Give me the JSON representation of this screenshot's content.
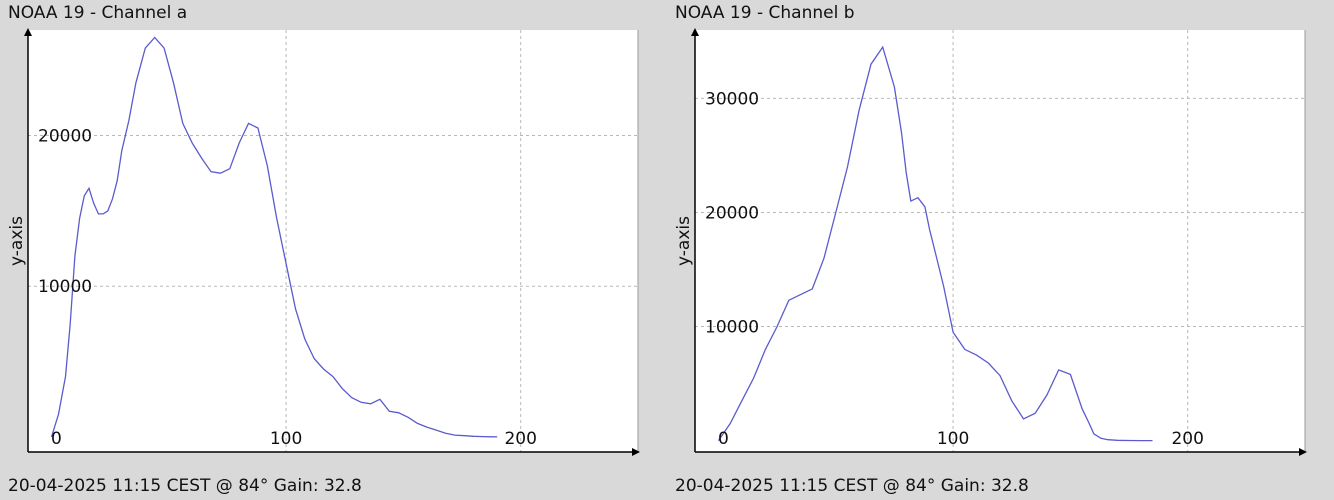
{
  "chart_data": [
    {
      "type": "line",
      "title": "NOAA 19 - Channel a",
      "footer": "20-04-2025 11:15 CEST @ 84° Gain: 32.8",
      "xlabel": "",
      "ylabel": "y-axis",
      "xlim": [
        -10,
        250
      ],
      "ylim": [
        -1000,
        27000
      ],
      "xticks": [
        0,
        100,
        200
      ],
      "xtick_labels": [
        "0",
        "100",
        "200"
      ],
      "yticks": [
        10000,
        20000
      ],
      "ytick_labels": [
        "10000",
        "20000"
      ],
      "grid": true,
      "color": "#5b5bcf",
      "series": [
        {
          "x": [
            0,
            3,
            6,
            8,
            10,
            12,
            14,
            16,
            18,
            20,
            22,
            24,
            26,
            28,
            30,
            33,
            36,
            40,
            44,
            48,
            52,
            56,
            60,
            64,
            68,
            72,
            76,
            80,
            84,
            88,
            92,
            96,
            100,
            104,
            108,
            112,
            116,
            120,
            124,
            128,
            132,
            136,
            140,
            144,
            148,
            152,
            156,
            160,
            164,
            168,
            172,
            176,
            180,
            184,
            188,
            190
          ],
          "y": [
            0,
            1500,
            4000,
            7500,
            12000,
            14500,
            16000,
            16500,
            15500,
            14800,
            14800,
            15000,
            15800,
            17000,
            19000,
            21000,
            23500,
            25800,
            26500,
            25800,
            23500,
            20800,
            19500,
            18500,
            17600,
            17500,
            17800,
            19500,
            20800,
            20500,
            18000,
            14500,
            11500,
            8500,
            6500,
            5200,
            4500,
            4000,
            3200,
            2600,
            2300,
            2200,
            2500,
            1700,
            1600,
            1300,
            900,
            650,
            450,
            250,
            120,
            80,
            40,
            20,
            10,
            0
          ]
        }
      ]
    },
    {
      "type": "line",
      "title": "NOAA 19 - Channel b",
      "footer": "20-04-2025 11:15 CEST @ 84° Gain: 32.8",
      "xlabel": "",
      "ylabel": "y-axis",
      "xlim": [
        -10,
        250
      ],
      "ylim": [
        -1000,
        36000
      ],
      "xticks": [
        0,
        100,
        200
      ],
      "xtick_labels": [
        "0",
        "100",
        "200"
      ],
      "yticks": [
        10000,
        20000,
        30000
      ],
      "ytick_labels": [
        "10000",
        "20000",
        "30000"
      ],
      "grid": true,
      "color": "#5b5bcf",
      "series": [
        {
          "x": [
            0,
            5,
            10,
            15,
            20,
            25,
            30,
            35,
            40,
            45,
            50,
            55,
            60,
            65,
            70,
            75,
            78,
            80,
            82,
            85,
            88,
            90,
            93,
            96,
            98,
            100,
            105,
            110,
            115,
            120,
            125,
            130,
            135,
            140,
            145,
            150,
            155,
            158,
            160,
            163,
            166,
            170,
            175,
            180,
            185
          ],
          "y": [
            0,
            1500,
            3500,
            5500,
            8000,
            10000,
            12300,
            12800,
            13300,
            16000,
            20000,
            24000,
            29000,
            33000,
            34500,
            31000,
            27000,
            23500,
            21000,
            21300,
            20500,
            18500,
            16000,
            13500,
            11500,
            9500,
            8000,
            7500,
            6800,
            5700,
            3500,
            1900,
            2400,
            4000,
            6200,
            5800,
            2800,
            1500,
            600,
            200,
            80,
            30,
            10,
            0,
            0
          ]
        }
      ]
    }
  ]
}
